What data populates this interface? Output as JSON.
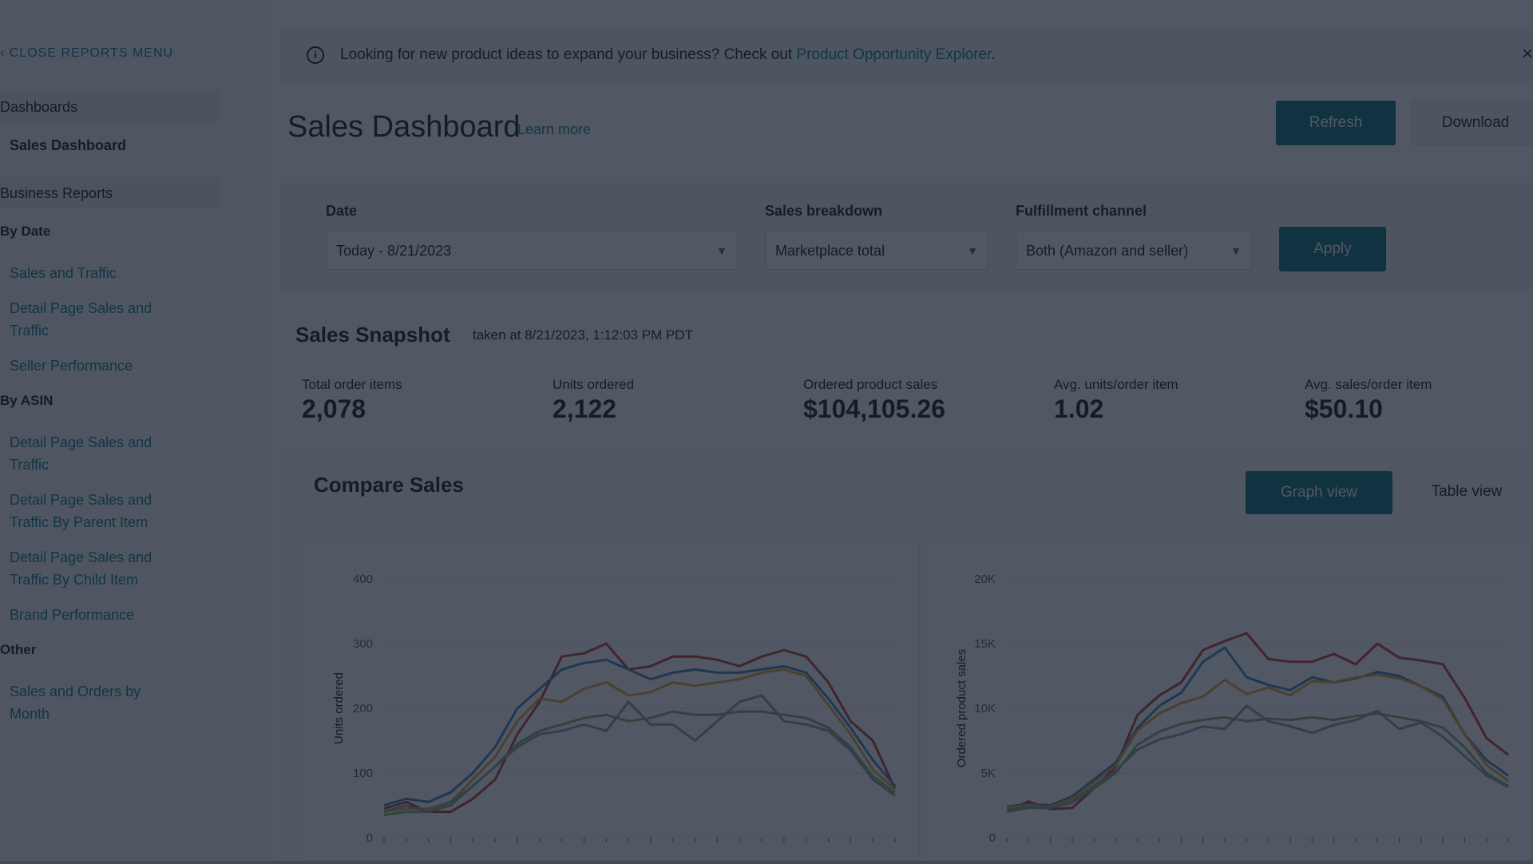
{
  "sidebar": {
    "close_label": "‹ CLOSE REPORTS MENU",
    "dashboards_header": "Dashboards",
    "active_item": "Sales Dashboard",
    "business_reports_header": "Business Reports",
    "by_date": {
      "label": "By Date",
      "items": [
        "Sales and Traffic",
        "Detail Page Sales and Traffic",
        "Seller Performance"
      ]
    },
    "by_asin": {
      "label": "By ASIN",
      "items": [
        "Detail Page Sales and Traffic",
        "Detail Page Sales and Traffic By Parent Item",
        "Detail Page Sales and Traffic By Child Item",
        "Brand Performance"
      ]
    },
    "other": {
      "label": "Other",
      "items": [
        "Sales and Orders by Month"
      ]
    }
  },
  "banner": {
    "text": "Looking for new product ideas to expand your business? Check out ",
    "link": "Product Opportunity Explorer",
    "after": ".",
    "info_icon": "info-icon",
    "close_icon": "close-icon",
    "close_glyph": "×"
  },
  "header": {
    "title": "Sales Dashboard",
    "learn_more": "Learn more",
    "refresh": "Refresh",
    "download": "Download"
  },
  "filters": {
    "date_label": "Date",
    "date_value": "Today - 8/21/2023",
    "breakdown_label": "Sales breakdown",
    "breakdown_value": "Marketplace total",
    "channel_label": "Fulfillment channel",
    "channel_value": "Both (Amazon and seller)",
    "apply": "Apply"
  },
  "snapshot": {
    "title": "Sales Snapshot",
    "taken": "taken at 8/21/2023, 1:12:03 PM PDT",
    "kpis": [
      {
        "label": "Total order items",
        "value": "2,078"
      },
      {
        "label": "Units ordered",
        "value": "2,122"
      },
      {
        "label": "Ordered product sales",
        "value": "$104,105.26"
      },
      {
        "label": "Avg. units/order item",
        "value": "1.02"
      },
      {
        "label": "Avg. sales/order item",
        "value": "$50.10"
      }
    ]
  },
  "compare": {
    "title": "Compare Sales",
    "graph_view": "Graph view",
    "table_view": "Table view"
  },
  "colors": {
    "teal": "#0a6e7e",
    "red": "#c0392b",
    "orange": "#e8a33d",
    "blue": "#3f7fbf",
    "green": "#7fae6a",
    "gray": "#8d9aa5"
  },
  "chart_data": [
    {
      "type": "line",
      "ylabel": "Units ordered",
      "ylim": [
        0,
        400
      ],
      "yticks": [
        "0",
        "100",
        "200",
        "300",
        "400"
      ],
      "x": [
        0,
        1,
        2,
        3,
        4,
        5,
        6,
        7,
        8,
        9,
        10,
        11,
        12,
        13,
        14,
        15,
        16,
        17,
        18,
        19,
        20,
        21,
        22,
        23
      ],
      "series": [
        {
          "color": "#c0392b",
          "values": [
            45,
            55,
            40,
            40,
            60,
            90,
            160,
            210,
            280,
            285,
            300,
            260,
            265,
            280,
            280,
            275,
            265,
            280,
            290,
            280,
            240,
            180,
            150,
            75
          ]
        },
        {
          "color": "#3f7fbf",
          "values": [
            50,
            60,
            55,
            70,
            100,
            140,
            200,
            230,
            260,
            270,
            275,
            260,
            245,
            255,
            260,
            255,
            255,
            260,
            265,
            255,
            215,
            170,
            120,
            80
          ]
        },
        {
          "color": "#e8a33d",
          "values": [
            40,
            45,
            45,
            55,
            90,
            125,
            180,
            215,
            210,
            230,
            240,
            220,
            225,
            240,
            235,
            240,
            245,
            255,
            260,
            250,
            205,
            160,
            105,
            75
          ]
        },
        {
          "color": "#7fae6a",
          "values": [
            35,
            40,
            40,
            50,
            80,
            110,
            145,
            165,
            175,
            185,
            190,
            180,
            185,
            195,
            190,
            190,
            195,
            195,
            190,
            185,
            170,
            140,
            95,
            70
          ]
        },
        {
          "color": "#8d9aa5",
          "values": [
            40,
            50,
            40,
            55,
            80,
            110,
            140,
            160,
            165,
            175,
            165,
            210,
            175,
            175,
            150,
            180,
            210,
            220,
            180,
            175,
            165,
            135,
            90,
            65
          ]
        }
      ]
    },
    {
      "type": "line",
      "ylabel": "Ordered product sales",
      "ylim": [
        0,
        20000
      ],
      "yticks": [
        "0",
        "5K",
        "10K",
        "15K",
        "20K"
      ],
      "x": [
        0,
        1,
        2,
        3,
        4,
        5,
        6,
        7,
        8,
        9,
        10,
        11,
        12,
        13,
        14,
        15,
        16,
        17,
        18,
        19,
        20,
        21,
        22,
        23
      ],
      "series": [
        {
          "color": "#c0392b",
          "values": [
            2000,
            2800,
            2200,
            2300,
            3800,
            5500,
            9500,
            11000,
            12000,
            14500,
            15200,
            15800,
            13800,
            13600,
            13600,
            14200,
            13400,
            15000,
            13900,
            13700,
            13400,
            10800,
            7700,
            6400
          ]
        },
        {
          "color": "#3f7fbf",
          "values": [
            2400,
            2600,
            2500,
            3200,
            4500,
            5800,
            8500,
            10200,
            11200,
            13600,
            14700,
            12400,
            11800,
            11400,
            12400,
            12000,
            12300,
            12800,
            12500,
            11700,
            10900,
            8000,
            6000,
            4800
          ]
        },
        {
          "color": "#e8a33d",
          "values": [
            2300,
            2500,
            2400,
            3000,
            4300,
            5600,
            8300,
            9600,
            10400,
            10900,
            12200,
            11100,
            11600,
            11000,
            12100,
            12000,
            12400,
            12600,
            12300,
            11700,
            10700,
            8000,
            5600,
            4400
          ]
        },
        {
          "color": "#7fae6a",
          "values": [
            2000,
            2300,
            2300,
            2700,
            3800,
            5000,
            7200,
            8200,
            8800,
            9100,
            9300,
            9000,
            9200,
            9100,
            9300,
            9100,
            9400,
            9600,
            9300,
            9000,
            8500,
            7000,
            5000,
            4000
          ]
        },
        {
          "color": "#8d9aa5",
          "values": [
            2100,
            2400,
            2300,
            2800,
            4000,
            5200,
            6800,
            7600,
            8000,
            8600,
            8400,
            10200,
            9000,
            8600,
            8100,
            8700,
            9100,
            9800,
            8400,
            8900,
            7800,
            6300,
            4800,
            3900
          ]
        }
      ]
    }
  ]
}
